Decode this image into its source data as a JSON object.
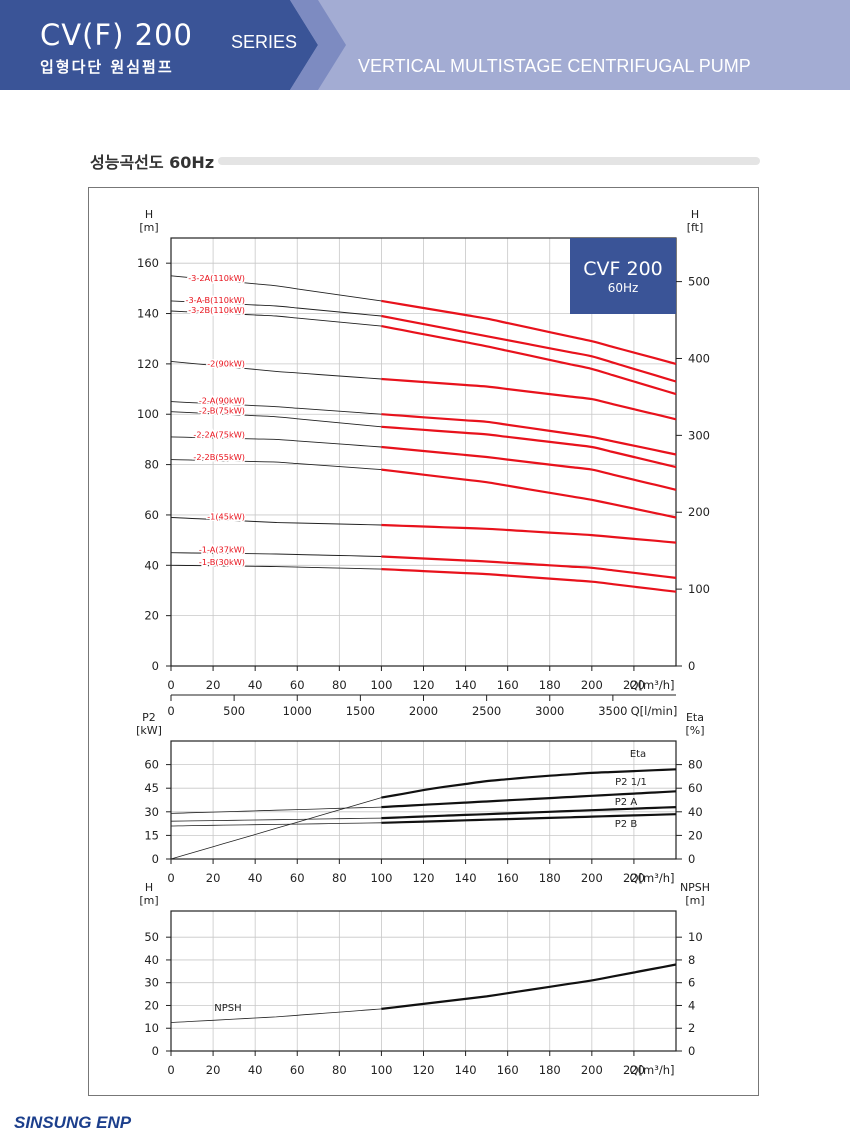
{
  "header": {
    "logo_main": "CV(F) 200",
    "logo_series": "SERIES",
    "logo_sub": "입형다단 원심펌프",
    "product_title": "VERTICAL MULTISTAGE CENTRIFUGAL PUMP",
    "colors": {
      "dark_blue": "#3a5497",
      "light_blue": "#a3acd3",
      "chart_red": "#e8121c"
    }
  },
  "section": {
    "title": "성능곡선도 60Hz"
  },
  "footer": {
    "brand": "SINSUNG ENP"
  },
  "chart_data": [
    {
      "type": "line",
      "badge": {
        "title": "CVF 200",
        "subtitle": "60Hz"
      },
      "y_unit_left": [
        "H",
        "[m]"
      ],
      "y_unit_right": [
        "H",
        "[ft]"
      ],
      "x_label": "Q[m³/h]",
      "x2_label": "Q[l/min]",
      "xlim": [
        0,
        240
      ],
      "ylim": [
        0,
        170
      ],
      "x_ticks": [
        0,
        20,
        40,
        60,
        80,
        100,
        120,
        140,
        160,
        180,
        200,
        220
      ],
      "x2_ticks": [
        0,
        500,
        1000,
        1500,
        2000,
        2500,
        3000,
        3500
      ],
      "y_ticks": [
        0,
        20,
        40,
        60,
        80,
        100,
        120,
        140,
        160
      ],
      "y_right_ticks": [
        0,
        100,
        200,
        300,
        400,
        500
      ],
      "grid": true,
      "note": "curves drawn thin black from 0 to 100 m³/h, thick red from 100 to 240 m³/h",
      "series": [
        {
          "name": "-3-2A(110kW)",
          "x": [
            0,
            50,
            100,
            150,
            200,
            240
          ],
          "values": [
            155,
            151,
            145,
            138,
            129,
            120
          ]
        },
        {
          "name": "-3-A-B(110kW)",
          "x": [
            0,
            50,
            100,
            150,
            200,
            240
          ],
          "values": [
            145,
            143,
            139,
            131,
            123,
            113
          ]
        },
        {
          "name": "-3-2B(110kW)",
          "x": [
            0,
            50,
            100,
            150,
            200,
            240
          ],
          "values": [
            141,
            139,
            135,
            127,
            118,
            108
          ]
        },
        {
          "name": "-2(90kW)",
          "x": [
            0,
            50,
            100,
            150,
            200,
            240
          ],
          "values": [
            121,
            117,
            114,
            111,
            106,
            98
          ]
        },
        {
          "name": "-2-A(90kW)",
          "x": [
            0,
            50,
            100,
            150,
            200,
            240
          ],
          "values": [
            105,
            103,
            100,
            97,
            91,
            84
          ]
        },
        {
          "name": "-2-B(75kW)",
          "x": [
            0,
            50,
            100,
            150,
            200,
            240
          ],
          "values": [
            101,
            99,
            95,
            92,
            87,
            79
          ]
        },
        {
          "name": "-2-2A(75kW)",
          "x": [
            0,
            50,
            100,
            150,
            200,
            240
          ],
          "values": [
            91,
            90,
            87,
            83,
            78,
            70
          ]
        },
        {
          "name": "-2-2B(55kW)",
          "x": [
            0,
            50,
            100,
            150,
            200,
            240
          ],
          "values": [
            82,
            81,
            78,
            73,
            66,
            59
          ]
        },
        {
          "name": "-1(45kW)",
          "x": [
            0,
            50,
            100,
            150,
            200,
            240
          ],
          "values": [
            59,
            57,
            56,
            54.5,
            52,
            49
          ]
        },
        {
          "name": "-1-A(37kW)",
          "x": [
            0,
            50,
            100,
            150,
            200,
            240
          ],
          "values": [
            45,
            44.5,
            43.5,
            41.5,
            39,
            35
          ]
        },
        {
          "name": "-1-B(30kW)",
          "x": [
            0,
            50,
            100,
            150,
            200,
            240
          ],
          "values": [
            40,
            39.5,
            38.5,
            36.5,
            33.5,
            29.5
          ]
        }
      ]
    },
    {
      "type": "line",
      "y_unit_left": [
        "P2",
        "[kW]"
      ],
      "y_unit_right": [
        "Eta",
        "[%]"
      ],
      "x_label": "Q[m³/h]",
      "xlim": [
        0,
        240
      ],
      "ylim": [
        0,
        75
      ],
      "y_ticks": [
        0,
        15,
        30,
        45,
        60
      ],
      "y_right_ticks": [
        0,
        20,
        40,
        60,
        80
      ],
      "grid": true,
      "series": [
        {
          "name": "Eta",
          "axis": "right",
          "x": [
            0,
            50,
            100,
            125,
            150,
            175,
            200,
            220,
            240
          ],
          "values": [
            0,
            26,
            52,
            60,
            66,
            70,
            73,
            74.5,
            76
          ]
        },
        {
          "name": "P2 1/1",
          "axis": "left",
          "x": [
            0,
            100,
            240
          ],
          "values": [
            29,
            33,
            43
          ]
        },
        {
          "name": "P2 A",
          "axis": "left",
          "x": [
            0,
            100,
            240
          ],
          "values": [
            24,
            26,
            33
          ]
        },
        {
          "name": "P2 B",
          "axis": "left",
          "x": [
            0,
            100,
            240
          ],
          "values": [
            21,
            23,
            28.5
          ]
        }
      ]
    },
    {
      "type": "line",
      "y_unit_left": [
        "H",
        "[m]"
      ],
      "y_unit_right": [
        "NPSH",
        "[m]"
      ],
      "x_label": "Q[m³/h]",
      "xlim": [
        0,
        240
      ],
      "ylim": [
        0,
        60
      ],
      "y_ticks": [
        0,
        10,
        20,
        30,
        40,
        50
      ],
      "y_right_ticks": [
        0,
        2,
        4,
        6,
        8,
        10
      ],
      "grid": true,
      "series": [
        {
          "name": "NPSH",
          "axis": "right",
          "x": [
            0,
            50,
            100,
            150,
            200,
            240
          ],
          "values": [
            2.5,
            3,
            3.7,
            4.8,
            6.2,
            7.6
          ]
        }
      ]
    }
  ]
}
